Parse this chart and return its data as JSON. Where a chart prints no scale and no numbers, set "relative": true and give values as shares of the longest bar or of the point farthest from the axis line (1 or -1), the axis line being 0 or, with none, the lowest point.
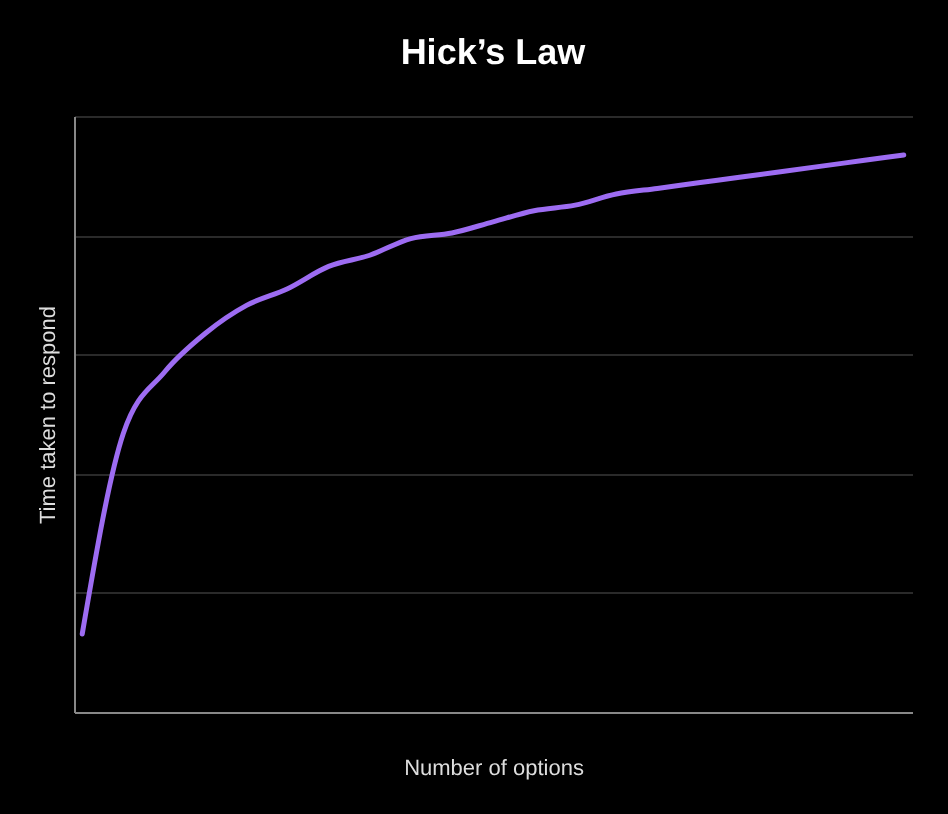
{
  "chart_data": {
    "type": "line",
    "title": "Hick’s Law",
    "xlabel": "Number of options",
    "ylabel": "Time taken to respond",
    "relative": true,
    "grid": "y",
    "marker": "none",
    "line_style": "solid",
    "categories": [
      null,
      null,
      null,
      null,
      null,
      null,
      null,
      null,
      null,
      null,
      null,
      null,
      null,
      null,
      null,
      null,
      null,
      null,
      null,
      null,
      null
    ],
    "series": [
      {
        "color": "#9d6cf2",
        "values": [
          0.14,
          0.5,
          0.61,
          0.68,
          0.73,
          0.76,
          0.8,
          0.82,
          0.85,
          0.86,
          0.88,
          0.9,
          0.91,
          0.93,
          0.94,
          0.95,
          0.96,
          0.97,
          0.98,
          0.99,
          1.0
        ]
      }
    ]
  }
}
